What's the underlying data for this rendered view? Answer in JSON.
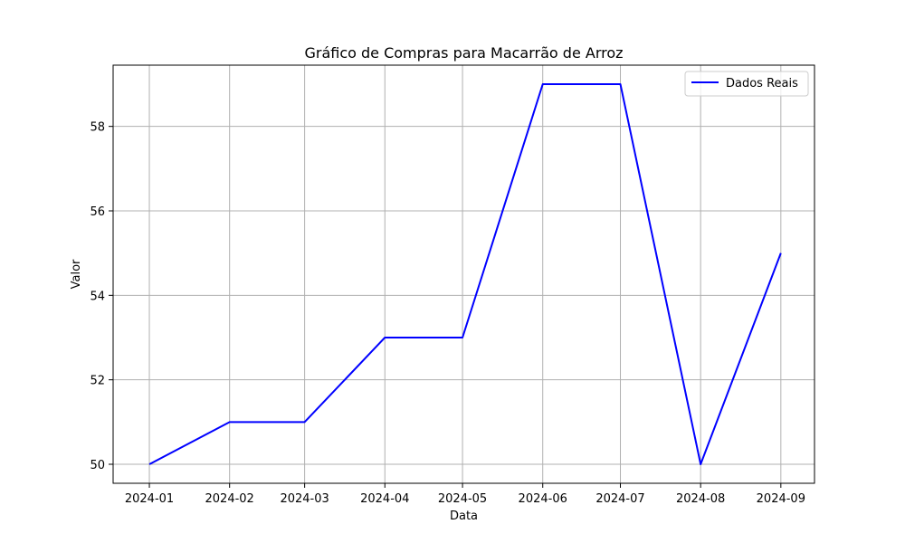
{
  "chart_data": {
    "type": "line",
    "title": "Gráfico de Compras para Macarrão de Arroz",
    "xlabel": "Data",
    "ylabel": "Valor",
    "x": [
      "2024-01",
      "2024-02",
      "2024-03",
      "2024-04",
      "2024-05",
      "2024-06",
      "2024-07",
      "2024-08",
      "2024-09"
    ],
    "series": [
      {
        "name": "Dados Reais",
        "color": "#0000ff",
        "values": [
          50,
          51,
          51,
          53,
          53,
          59,
          59,
          50,
          55
        ]
      }
    ],
    "xlim": [
      "2023-12-18",
      "2024-09-14"
    ],
    "ylim": [
      49.55,
      59.45
    ],
    "yticks": [
      50,
      52,
      54,
      56,
      58
    ],
    "grid": true,
    "legend": "upper-right"
  }
}
